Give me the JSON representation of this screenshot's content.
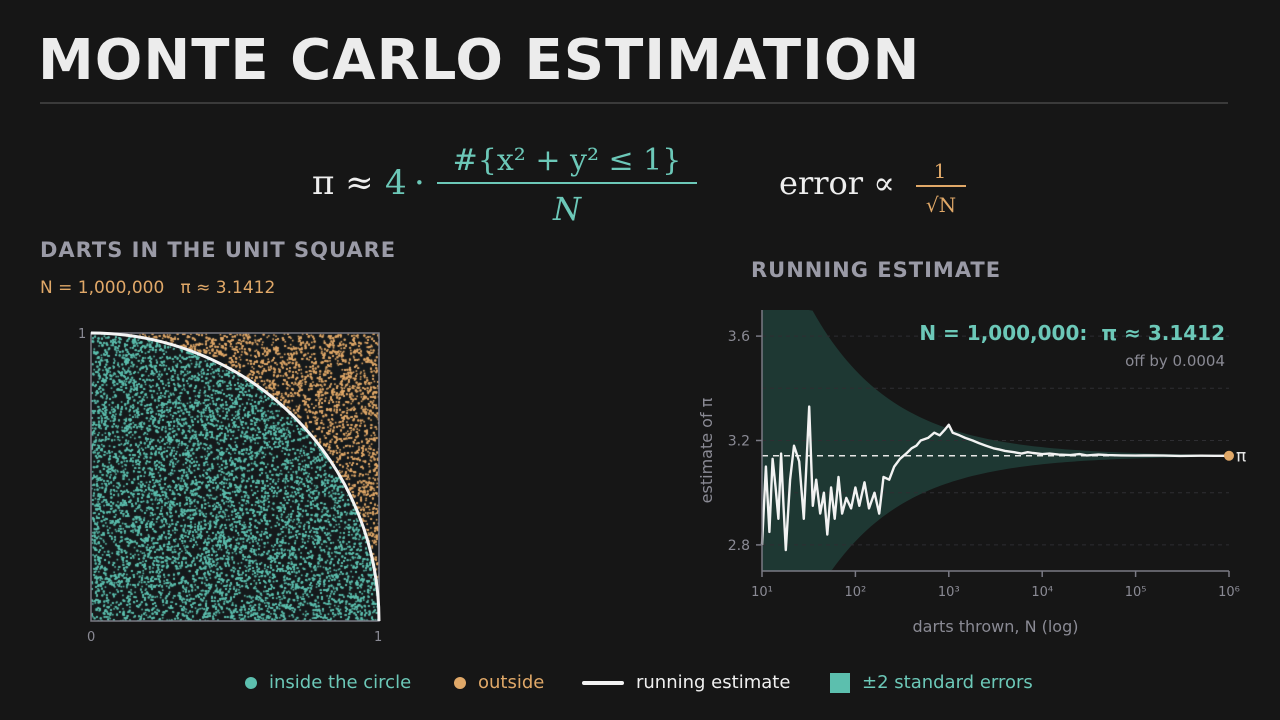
{
  "title": "MONTE CARLO ESTIMATION",
  "formula": {
    "lhs": "π ≈",
    "four": "4",
    "dot": "·",
    "numerator": "#{x² + y² ≤ 1}",
    "denominator": "N",
    "error_label": "error ∝",
    "error_num": "1",
    "error_den": "√N"
  },
  "left_panel": {
    "heading": "DARTS IN THE UNIT SQUARE",
    "subheading": "N = 1,000,000   π ≈ 3.1412",
    "axis_min": "0",
    "axis_max": "1"
  },
  "right_panel": {
    "heading": "RUNNING ESTIMATE",
    "annotation": "N = 1,000,000:  π ≈ 3.1412",
    "annotation_sub": "off by 0.0004",
    "pi_label": "π"
  },
  "legend": {
    "inside": "inside the circle",
    "outside": "outside",
    "running": "running estimate",
    "band": "±2 standard errors"
  },
  "colors": {
    "inside": "#5cbfae",
    "outside": "#e0a868",
    "line": "#f2f2f2",
    "band": "#1f3a35",
    "heading": "#9a9aa6",
    "background": "#161616"
  },
  "chart_data": [
    {
      "type": "scatter",
      "title": "DARTS IN THE UNIT SQUARE",
      "xlim": [
        0,
        1
      ],
      "ylim": [
        0,
        1
      ],
      "x_ticks": [
        "0",
        "1"
      ],
      "y_ticks": [
        "1"
      ],
      "series": [
        {
          "name": "inside the circle",
          "color": "#5cbfae"
        },
        {
          "name": "outside",
          "color": "#e0a868"
        }
      ],
      "n_points": 1000000,
      "boundary": "quarter circle x² + y² = 1",
      "estimate": 3.1412
    },
    {
      "type": "line",
      "title": "RUNNING ESTIMATE",
      "xlabel": "darts thrown, N (log)",
      "ylabel": "estimate of π",
      "x_scale": "log",
      "xlim": [
        10,
        1000000
      ],
      "ylim": [
        2.7,
        3.7
      ],
      "x_ticks": [
        10,
        100,
        1000,
        10000,
        100000,
        1000000
      ],
      "x_tick_labels": [
        "10¹",
        "10²",
        "10³",
        "10⁴",
        "10⁵",
        "10⁶"
      ],
      "y_ticks": [
        2.8,
        3.2,
        3.6
      ],
      "y_tick_labels": [
        "2.8",
        "3.2",
        "3.6"
      ],
      "reference_line": 3.14159,
      "band": {
        "name": "±2 standard errors",
        "center": 3.14159,
        "half_width_coefficient": 3.28
      },
      "series": [
        {
          "name": "running estimate",
          "x": [
            10,
            11,
            12,
            13,
            14,
            15,
            16,
            17,
            18,
            20,
            22,
            25,
            28,
            32,
            35,
            38,
            42,
            46,
            50,
            55,
            60,
            66,
            72,
            80,
            90,
            100,
            110,
            125,
            140,
            160,
            180,
            200,
            230,
            260,
            300,
            350,
            400,
            450,
            500,
            600,
            700,
            800,
            900,
            1000,
            1100,
            1300,
            1500,
            1800,
            2100,
            2500,
            3000,
            3500,
            4000,
            5000,
            6000,
            7000,
            8000,
            10000,
            12000,
            15000,
            20000,
            25000,
            30000,
            40000,
            50000,
            70000,
            100000,
            150000,
            200000,
            300000,
            500000,
            700000,
            1000000
          ],
          "y": [
            2.8,
            3.1,
            2.85,
            3.13,
            3.02,
            2.9,
            3.15,
            2.95,
            2.78,
            3.05,
            3.18,
            3.12,
            2.9,
            3.33,
            2.95,
            3.05,
            2.92,
            3.0,
            2.84,
            3.02,
            2.9,
            3.06,
            2.92,
            2.98,
            2.94,
            3.02,
            2.95,
            3.04,
            2.94,
            3.0,
            2.92,
            3.06,
            3.05,
            3.1,
            3.13,
            3.15,
            3.17,
            3.18,
            3.2,
            3.21,
            3.23,
            3.22,
            3.24,
            3.26,
            3.23,
            3.22,
            3.21,
            3.2,
            3.19,
            3.18,
            3.17,
            3.165,
            3.16,
            3.155,
            3.15,
            3.155,
            3.152,
            3.148,
            3.15,
            3.146,
            3.144,
            3.148,
            3.143,
            3.146,
            3.144,
            3.143,
            3.142,
            3.143,
            3.142,
            3.141,
            3.1418,
            3.1413,
            3.1412
          ]
        }
      ],
      "final_estimate": 3.1412,
      "off_by": 0.0004
    }
  ]
}
